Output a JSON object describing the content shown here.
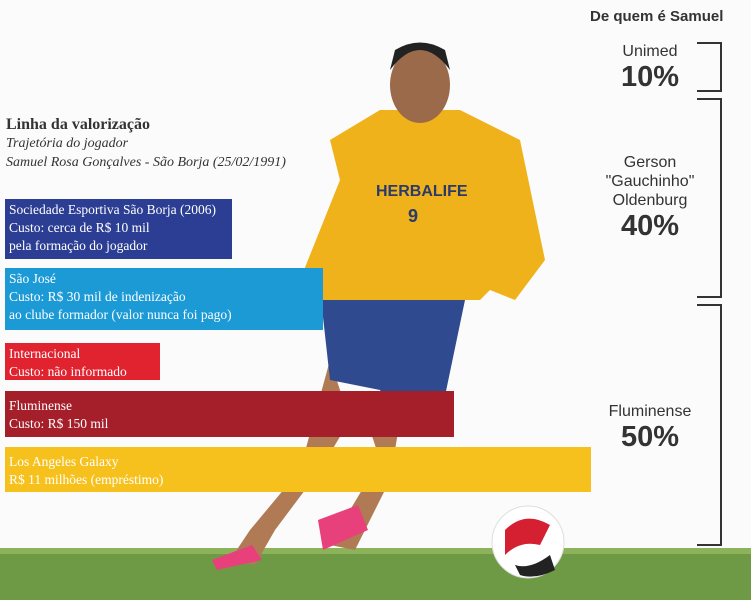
{
  "header": {
    "title": "Linha da valorização",
    "subtitle": "Trajetória do jogador",
    "player": "Samuel Rosa Gonçalves - São Borja (25/02/1991)"
  },
  "timeline": [
    {
      "club": "Sociedade Esportiva São Borja (2006)",
      "lines": [
        "Custo: cerca de R$ 10 mil",
        "pela formação do jogador"
      ],
      "color": "#2c3e93"
    },
    {
      "club": "São José",
      "lines": [
        "Custo: R$ 30 mil de indenização",
        "ao clube formador (valor nunca foi pago)"
      ],
      "color": "#1b9ad6"
    },
    {
      "club": "Internacional",
      "lines": [
        "Custo: não informado"
      ],
      "color": "#e1222f"
    },
    {
      "club": "Fluminense",
      "lines": [
        "Custo: R$ 150 mil"
      ],
      "color": "#a51f2b"
    },
    {
      "club": "Los Angeles Galaxy",
      "lines": [
        "R$ 11 milhões (empréstimo)"
      ],
      "color": "#f7c11d"
    }
  ],
  "ownership": {
    "title": "De quem é Samuel",
    "owners": [
      {
        "name": [
          "Unimed"
        ],
        "percent": "10%",
        "share": 10
      },
      {
        "name": [
          "Gerson",
          "\"Gauchinho\"",
          "Oldenburg"
        ],
        "percent": "40%",
        "share": 40
      },
      {
        "name": [
          "Fluminense"
        ],
        "percent": "50%",
        "share": 50
      }
    ]
  },
  "photo": {
    "jersey_text": "HERBALIFE",
    "number": "9"
  }
}
